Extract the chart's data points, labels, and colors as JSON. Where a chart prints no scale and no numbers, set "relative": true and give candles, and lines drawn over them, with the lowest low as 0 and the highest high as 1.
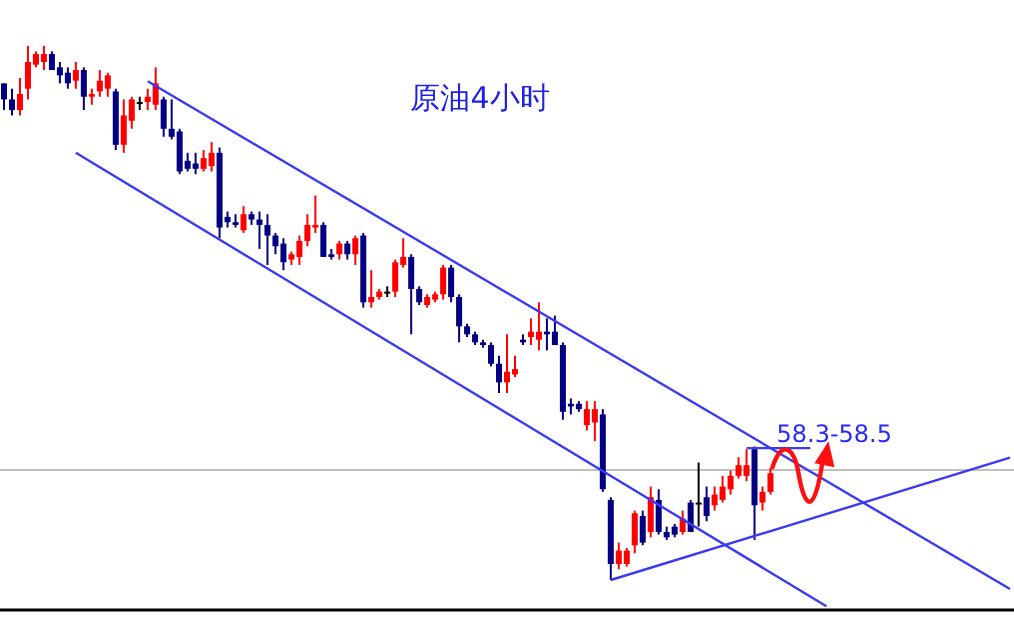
{
  "chart_data": {
    "type": "candlestick",
    "title": "原油4小时",
    "relative": true,
    "categories": [
      null,
      null,
      null,
      null,
      null,
      null,
      null,
      null,
      null,
      null,
      null,
      null,
      null,
      null,
      null,
      null,
      null,
      null,
      null,
      null,
      null,
      null,
      null,
      null,
      null,
      null,
      null,
      null,
      null,
      null,
      null,
      null,
      null,
      null,
      null,
      null,
      null,
      null,
      null,
      null,
      null,
      null,
      null,
      null,
      null,
      null,
      null,
      null,
      null,
      null,
      null,
      null,
      null,
      null,
      null,
      null,
      null,
      null,
      null,
      null,
      null,
      null,
      null,
      null,
      null,
      null,
      null,
      null,
      null,
      null,
      null,
      null,
      null,
      null,
      null,
      null,
      null,
      null,
      null,
      null,
      null,
      null,
      null,
      null,
      null,
      null,
      null,
      null,
      null,
      null,
      null,
      null,
      null,
      null,
      null,
      null,
      null,
      null,
      null,
      null,
      null,
      null,
      null,
      null,
      null,
      null,
      null,
      null,
      null,
      null,
      null,
      null,
      null,
      null,
      null,
      null,
      null,
      null,
      null,
      null,
      null,
      null,
      null,
      null,
      null,
      null,
      null
    ],
    "ohlc": [
      [
        0.93,
        0.93,
        0.88,
        0.9
      ],
      [
        0.9,
        0.92,
        0.87,
        0.88
      ],
      [
        0.88,
        0.94,
        0.87,
        0.91
      ],
      [
        0.92,
        1.0,
        0.9,
        0.97
      ],
      [
        0.965,
        0.99,
        0.96,
        0.985
      ],
      [
        0.97,
        1.0,
        0.955,
        0.985
      ],
      [
        0.985,
        0.99,
        0.955,
        0.955
      ],
      [
        0.96,
        0.97,
        0.93,
        0.945
      ],
      [
        0.95,
        0.96,
        0.92,
        0.93
      ],
      [
        0.935,
        0.97,
        0.92,
        0.955
      ],
      [
        0.955,
        0.96,
        0.88,
        0.905
      ],
      [
        0.905,
        0.92,
        0.89,
        0.91
      ],
      [
        0.915,
        0.955,
        0.905,
        0.935
      ],
      [
        0.92,
        0.95,
        0.905,
        0.945
      ],
      [
        0.915,
        0.92,
        0.805,
        0.815
      ],
      [
        0.815,
        0.9,
        0.8,
        0.87
      ],
      [
        0.86,
        0.905,
        0.845,
        0.9
      ],
      [
        0.895,
        0.905,
        0.88,
        0.895
      ],
      [
        0.895,
        0.92,
        0.88,
        0.905
      ],
      [
        0.89,
        0.96,
        0.88,
        0.93
      ],
      [
        0.9,
        0.905,
        0.83,
        0.845
      ],
      [
        0.845,
        0.9,
        0.825,
        0.83
      ],
      [
        0.84,
        0.845,
        0.76,
        0.765
      ],
      [
        0.785,
        0.8,
        0.765,
        0.77
      ],
      [
        0.78,
        0.8,
        0.76,
        0.77
      ],
      [
        0.77,
        0.805,
        0.765,
        0.79
      ],
      [
        0.775,
        0.82,
        0.765,
        0.8
      ],
      [
        0.8,
        0.81,
        0.64,
        0.66
      ],
      [
        0.68,
        0.69,
        0.66,
        0.67
      ],
      [
        0.67,
        0.685,
        0.66,
        0.665
      ],
      [
        0.655,
        0.7,
        0.65,
        0.685
      ],
      [
        0.685,
        0.69,
        0.665,
        0.675
      ],
      [
        0.675,
        0.69,
        0.62,
        0.665
      ],
      [
        0.665,
        0.685,
        0.59,
        0.645
      ],
      [
        0.645,
        0.65,
        0.61,
        0.625
      ],
      [
        0.63,
        0.64,
        0.58,
        0.595
      ],
      [
        0.6,
        0.615,
        0.59,
        0.61
      ],
      [
        0.605,
        0.645,
        0.59,
        0.635
      ],
      [
        0.635,
        0.685,
        0.625,
        0.665
      ],
      [
        0.66,
        0.72,
        0.65,
        0.665
      ],
      [
        0.665,
        0.67,
        0.605,
        0.605
      ],
      [
        0.61,
        0.62,
        0.6,
        0.605
      ],
      [
        0.61,
        0.635,
        0.6,
        0.63
      ],
      [
        0.63,
        0.635,
        0.6,
        0.61
      ],
      [
        0.61,
        0.645,
        0.59,
        0.64
      ],
      [
        0.645,
        0.65,
        0.51,
        0.52
      ],
      [
        0.52,
        0.58,
        0.51,
        0.53
      ],
      [
        0.53,
        0.545,
        0.525,
        0.54
      ],
      [
        0.54,
        0.55,
        0.53,
        0.54
      ],
      [
        0.54,
        0.6,
        0.53,
        0.595
      ],
      [
        0.59,
        0.64,
        0.585,
        0.605
      ],
      [
        0.605,
        0.61,
        0.46,
        0.545
      ],
      [
        0.545,
        0.55,
        0.515,
        0.52
      ],
      [
        0.515,
        0.535,
        0.51,
        0.53
      ],
      [
        0.525,
        0.54,
        0.52,
        0.535
      ],
      [
        0.535,
        0.59,
        0.525,
        0.585
      ],
      [
        0.585,
        0.59,
        0.52,
        0.53
      ],
      [
        0.53,
        0.535,
        0.445,
        0.475
      ],
      [
        0.475,
        0.48,
        0.455,
        0.46
      ],
      [
        0.46,
        0.465,
        0.44,
        0.445
      ],
      [
        0.445,
        0.45,
        0.435,
        0.44
      ],
      [
        0.44,
        0.445,
        0.4,
        0.405
      ],
      [
        0.405,
        0.42,
        0.35,
        0.37
      ],
      [
        0.37,
        0.46,
        0.35,
        0.39
      ],
      [
        0.385,
        0.42,
        0.38,
        0.395
      ],
      [
        0.45,
        0.46,
        0.44,
        0.445
      ],
      [
        0.455,
        0.49,
        0.44,
        0.465
      ],
      [
        0.45,
        0.52,
        0.43,
        0.465
      ],
      [
        0.465,
        0.49,
        0.43,
        0.46
      ],
      [
        0.465,
        0.495,
        0.44,
        0.44
      ],
      [
        0.44,
        0.445,
        0.3,
        0.315
      ],
      [
        0.33,
        0.34,
        0.31,
        0.325
      ],
      [
        0.33,
        0.335,
        0.315,
        0.32
      ],
      [
        0.29,
        0.335,
        0.28,
        0.32
      ],
      [
        0.295,
        0.335,
        0.26,
        0.32
      ],
      [
        0.31,
        0.32,
        0.165,
        0.17
      ],
      [
        0.15,
        0.155,
        0,
        0.03
      ],
      [
        0.03,
        0.07,
        0.02,
        0.055
      ],
      [
        0.03,
        0.06,
        0.025,
        0.055
      ],
      [
        0.065,
        0.13,
        0.05,
        0.125
      ],
      [
        0.12,
        0.13,
        0.065,
        0.07
      ],
      [
        0.09,
        0.175,
        0.08,
        0.155
      ],
      [
        0.15,
        0.17,
        0.085,
        0.09
      ],
      [
        0.09,
        0.1,
        0.075,
        0.08
      ],
      [
        0.1,
        0.105,
        0.08,
        0.085
      ],
      [
        0.09,
        0.13,
        0.085,
        0.115
      ],
      [
        0.145,
        0.15,
        0.09,
        0.09
      ],
      [
        0.145,
        0.22,
        0.1,
        0.145
      ],
      [
        0.155,
        0.175,
        0.11,
        0.12
      ],
      [
        0.14,
        0.175,
        0.13,
        0.16
      ],
      [
        0.15,
        0.195,
        0.145,
        0.175
      ],
      [
        0.17,
        0.205,
        0.16,
        0.195
      ],
      [
        0.195,
        0.23,
        0.19,
        0.215
      ],
      [
        0.195,
        0.245,
        0.185,
        0.215
      ],
      [
        0.245,
        0.25,
        0.075,
        0.14
      ],
      [
        0.145,
        0.175,
        0.13,
        0.165
      ],
      [
        0.165,
        0.21,
        0.16,
        0.2
      ],
      null,
      null,
      null,
      null,
      null,
      null,
      null,
      null,
      null,
      null,
      null,
      null,
      null,
      null,
      null,
      null,
      null,
      null,
      null,
      null,
      null,
      null,
      null,
      null,
      null,
      null,
      null,
      null,
      null,
      null
    ],
    "colors": [
      "#000080",
      "#000080",
      "#ff0000",
      "#ff0000",
      "#ff0000",
      "#ff0000",
      "#000080",
      "#000080",
      "#000080",
      "#ff0000",
      "#000080",
      "#ff0000",
      "#ff0000",
      "#ff0000",
      "#000080",
      "#ff0000",
      "#ff0000",
      "#000000",
      "#ff0000",
      "#ff0000",
      "#000080",
      "#000080",
      "#000080",
      "#000080",
      "#000080",
      "#ff0000",
      "#ff0000",
      "#000080",
      "#000080",
      "#000080",
      "#ff0000",
      "#000080",
      "#000080",
      "#000080",
      "#000080",
      "#000080",
      "#ff0000",
      "#ff0000",
      "#ff0000",
      "#ff0000",
      "#000080",
      "#000080",
      "#ff0000",
      "#000080",
      "#ff0000",
      "#000080",
      "#ff0000",
      "#ff0000",
      "#000000",
      "#ff0000",
      "#ff0000",
      "#000080",
      "#000080",
      "#ff0000",
      "#ff0000",
      "#ff0000",
      "#000080",
      "#000080",
      "#000080",
      "#000080",
      "#000080",
      "#000080",
      "#000080",
      "#ff0000",
      "#ff0000",
      "#000080",
      "#ff0000",
      "#ff0000",
      "#000080",
      "#000080",
      "#000080",
      "#000080",
      "#000080",
      "#ff0000",
      "#ff0000",
      "#000080",
      "#000080",
      "#ff0000",
      "#ff0000",
      "#ff0000",
      "#000080",
      "#ff0000",
      "#000080",
      "#000080",
      "#000080",
      "#ff0000",
      "#000080",
      "#000000",
      "#000080",
      "#ff0000",
      "#ff0000",
      "#ff0000",
      "#ff0000",
      "#ff0000",
      "#000080",
      "#ff0000",
      "#ff0000",
      null,
      null,
      null,
      null,
      null,
      null,
      null,
      null,
      null,
      null,
      null,
      null,
      null,
      null,
      null,
      null,
      null,
      null,
      null,
      null,
      null,
      null,
      null,
      null,
      null,
      null,
      null,
      null,
      null,
      null
    ],
    "series": [
      {
        "type": "line",
        "color": "#3a3af5",
        "values": [
          null,
          null,
          null,
          null,
          null,
          null,
          null,
          null,
          null,
          null,
          null,
          null,
          null,
          null,
          null,
          null,
          null,
          null,
          0.934,
          null,
          null,
          null,
          null,
          null,
          null,
          null,
          null,
          null,
          null,
          null,
          null,
          null,
          null,
          null,
          null,
          null,
          null,
          null,
          null,
          null,
          null,
          null,
          null,
          null,
          null,
          null,
          null,
          null,
          null,
          null,
          null,
          null,
          null,
          null,
          null,
          null,
          null,
          null,
          null,
          null,
          null,
          null,
          null,
          null,
          null,
          null,
          null,
          null,
          null,
          null,
          null,
          null,
          null,
          null,
          null,
          null,
          null,
          null,
          null,
          null,
          null,
          null,
          null,
          null,
          null,
          null,
          null,
          null,
          null,
          null,
          null,
          null,
          null,
          null,
          null,
          null,
          null,
          null,
          null,
          null,
          null,
          null,
          null,
          null,
          null,
          null,
          null,
          null,
          null,
          null,
          null,
          null,
          null,
          null,
          null,
          null,
          null,
          null,
          null,
          null,
          null,
          null,
          null,
          null,
          null,
          null,
          -0.017
        ]
      },
      {
        "type": "line",
        "color": "#3a3af5",
        "values": [
          null,
          null,
          null,
          null,
          null,
          null,
          null,
          null,
          null,
          0.8,
          null,
          null,
          null,
          null,
          null,
          null,
          null,
          null,
          null,
          null,
          null,
          null,
          null,
          null,
          null,
          null,
          null,
          null,
          null,
          null,
          null,
          null,
          null,
          null,
          null,
          null,
          null,
          null,
          null,
          null,
          null,
          null,
          null,
          null,
          null,
          null,
          null,
          null,
          null,
          null,
          null,
          null,
          null,
          null,
          null,
          null,
          null,
          null,
          null,
          null,
          null,
          null,
          null,
          null,
          null,
          null,
          null,
          null,
          null,
          null,
          null,
          null,
          null,
          null,
          null,
          null,
          null,
          null,
          null,
          null,
          null,
          null,
          null,
          null,
          null,
          null,
          null,
          null,
          null,
          null,
          null,
          null,
          null,
          null,
          null,
          null,
          null,
          null,
          null,
          null,
          null,
          null,
          null,
          -0.049,
          null,
          null,
          null,
          null,
          null,
          null,
          null,
          null,
          null,
          null,
          null,
          null,
          null,
          null,
          null,
          null,
          null,
          null,
          null,
          null,
          null,
          null,
          null
        ]
      },
      {
        "type": "line",
        "color": "#3a3af5",
        "values": [
          null,
          null,
          null,
          null,
          null,
          null,
          null,
          null,
          null,
          null,
          null,
          null,
          null,
          null,
          null,
          null,
          null,
          null,
          null,
          null,
          null,
          null,
          null,
          null,
          null,
          null,
          null,
          null,
          null,
          null,
          null,
          null,
          null,
          null,
          null,
          null,
          null,
          null,
          null,
          null,
          null,
          null,
          null,
          null,
          null,
          null,
          null,
          null,
          null,
          null,
          null,
          null,
          null,
          null,
          null,
          null,
          null,
          null,
          null,
          null,
          null,
          null,
          null,
          null,
          null,
          null,
          null,
          null,
          null,
          null,
          null,
          null,
          null,
          null,
          null,
          null,
          0.0,
          null,
          null,
          null,
          null,
          null,
          null,
          null,
          null,
          null,
          null,
          null,
          null,
          null,
          null,
          null,
          null,
          null,
          null,
          null,
          null,
          null,
          null,
          null,
          null,
          null,
          null,
          null,
          null,
          null,
          null,
          null,
          null,
          null,
          null,
          null,
          null,
          null,
          null,
          null,
          null,
          null,
          null,
          null,
          null,
          null,
          null,
          null,
          null,
          null,
          0.229
        ]
      },
      {
        "type": "line",
        "color": "#3a3af5",
        "values": [
          null,
          null,
          null,
          null,
          null,
          null,
          null,
          null,
          null,
          null,
          null,
          null,
          null,
          null,
          null,
          null,
          null,
          null,
          null,
          null,
          null,
          null,
          null,
          null,
          null,
          null,
          null,
          null,
          null,
          null,
          null,
          null,
          null,
          null,
          null,
          null,
          null,
          null,
          null,
          null,
          null,
          null,
          null,
          null,
          null,
          null,
          null,
          null,
          null,
          null,
          null,
          null,
          null,
          null,
          null,
          null,
          null,
          null,
          null,
          null,
          null,
          null,
          null,
          null,
          null,
          null,
          null,
          null,
          null,
          null,
          null,
          null,
          null,
          null,
          null,
          null,
          null,
          null,
          null,
          null,
          null,
          null,
          null,
          null,
          null,
          null,
          null,
          null,
          null,
          null,
          null,
          null,
          null,
          0.247,
          null,
          null,
          null,
          null,
          null,
          null,
          null,
          0.247,
          null,
          null,
          null,
          null,
          null,
          null,
          null,
          null,
          null,
          null,
          null,
          null,
          null,
          null,
          null,
          null,
          null,
          null,
          null,
          null,
          null,
          null,
          null,
          null,
          null
        ]
      }
    ],
    "ref_lines": [
      {
        "axis": "y",
        "value": 0.206,
        "color": "#c0c0c0"
      }
    ],
    "annotations": [
      "58.3-58.5"
    ]
  }
}
